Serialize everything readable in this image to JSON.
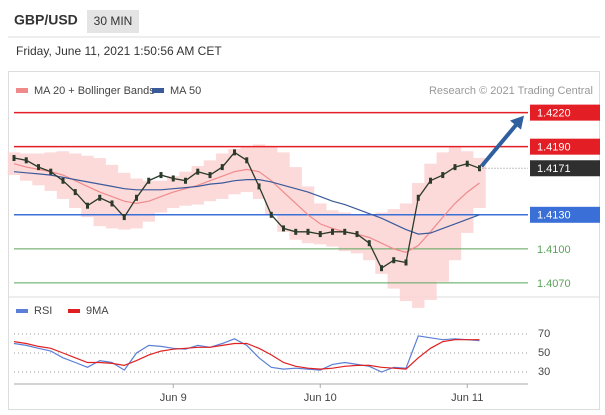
{
  "header": {
    "symbol": "GBP/USD",
    "interval": "30 MIN",
    "timestamp": "Friday, June 11, 2021 1:50:56 AM CET"
  },
  "chart_data": {
    "type": "line",
    "source": "Research © 2021 Trading Central",
    "categories": [
      null,
      null,
      null,
      null,
      null,
      null,
      null,
      null,
      null,
      null,
      null,
      null,
      null,
      "Jun 9",
      null,
      null,
      null,
      null,
      null,
      null,
      null,
      null,
      null,
      null,
      null,
      "Jun 10",
      null,
      null,
      null,
      null,
      null,
      null,
      null,
      null,
      null,
      null,
      null,
      "Jun 11",
      null
    ],
    "close_color": "#2b3a2b",
    "close": [
      1.418,
      1.4178,
      1.4172,
      1.4168,
      1.416,
      1.415,
      1.4138,
      1.4145,
      1.414,
      1.4128,
      1.4145,
      1.416,
      1.4165,
      1.4162,
      1.416,
      1.4168,
      1.4165,
      1.4172,
      1.4185,
      1.4178,
      1.4155,
      1.413,
      1.4118,
      1.4115,
      1.4115,
      1.4113,
      1.4115,
      1.4115,
      1.4113,
      1.4105,
      1.4083,
      1.409,
      1.4088,
      1.4145,
      1.416,
      1.4165,
      1.4172,
      1.4175,
      1.4171
    ],
    "series": [
      {
        "name": "MA 20 + Bollinger Bands",
        "color": "#f08a8a",
        "band_color": "#fbd3d3",
        "values": [
          1.4175,
          1.4172,
          1.417,
          1.4168,
          1.4165,
          1.416,
          1.4155,
          1.415,
          1.4146,
          1.4142,
          1.414,
          1.4142,
          1.4146,
          1.415,
          1.4153,
          1.4156,
          1.416,
          1.4164,
          1.4168,
          1.417,
          1.4168,
          1.416,
          1.415,
          1.414,
          1.413,
          1.4122,
          1.4118,
          1.4115,
          1.4113,
          1.411,
          1.4105,
          1.41,
          1.4097,
          1.4103,
          1.4115,
          1.4128,
          1.414,
          1.415,
          1.4158
        ],
        "upper": [
          1.4185,
          1.4184,
          1.4184,
          1.4185,
          1.4186,
          1.4184,
          1.4182,
          1.418,
          1.4174,
          1.4167,
          1.4162,
          1.416,
          1.416,
          1.4164,
          1.4168,
          1.4173,
          1.4178,
          1.4184,
          1.4188,
          1.419,
          1.4192,
          1.419,
          1.4185,
          1.4172,
          1.4155,
          1.414,
          1.4134,
          1.4132,
          1.413,
          1.413,
          1.4132,
          1.4135,
          1.414,
          1.4158,
          1.4175,
          1.4185,
          1.419,
          1.4186,
          1.418
        ],
        "lower": [
          1.4165,
          1.416,
          1.4156,
          1.4151,
          1.4144,
          1.4136,
          1.4128,
          1.412,
          1.4118,
          1.4117,
          1.4118,
          1.4124,
          1.4132,
          1.4136,
          1.4138,
          1.4139,
          1.4142,
          1.4144,
          1.4148,
          1.415,
          1.4144,
          1.413,
          1.4115,
          1.4108,
          1.4105,
          1.4104,
          1.4102,
          1.4098,
          1.4096,
          1.409,
          1.4078,
          1.4065,
          1.4054,
          1.4048,
          1.4055,
          1.4071,
          1.409,
          1.4114,
          1.4136
        ]
      },
      {
        "name": "MA 50",
        "color": "#3b5a9a",
        "values": [
          1.4168,
          1.4167,
          1.4166,
          1.4165,
          1.4163,
          1.4161,
          1.4159,
          1.4157,
          1.4155,
          1.4153,
          1.4152,
          1.4152,
          1.4152,
          1.4153,
          1.4154,
          1.4155,
          1.4157,
          1.4158,
          1.416,
          1.4161,
          1.4161,
          1.4159,
          1.4156,
          1.4153,
          1.415,
          1.4146,
          1.4142,
          1.4139,
          1.4135,
          1.4131,
          1.4127,
          1.4122,
          1.4117,
          1.4113,
          1.4114,
          1.4118,
          1.4122,
          1.4126,
          1.413
        ]
      }
    ],
    "ylim": [
      1.4062,
      1.4232
    ],
    "levels": [
      {
        "value": 1.422,
        "label": "1.4220",
        "color": "#e31e24",
        "style": "box"
      },
      {
        "value": 1.419,
        "label": "1.4190",
        "color": "#e31e24",
        "style": "box"
      },
      {
        "value": 1.413,
        "label": "1.4130",
        "color": "#3a6fd8",
        "style": "box"
      },
      {
        "value": 1.41,
        "label": "1.4100",
        "color": "#5aa35a",
        "style": "text"
      },
      {
        "value": 1.407,
        "label": "1.4070",
        "color": "#5aa35a",
        "style": "text"
      }
    ],
    "last": {
      "value": 1.4171,
      "label": "1.4171",
      "color": "#2f2f2f"
    },
    "arrow_color": "#2f5f9f",
    "rsi": {
      "ylim": [
        20,
        80
      ],
      "yticks": [
        70,
        50,
        30
      ],
      "series": [
        {
          "name": "RSI",
          "color": "#5b7fd6",
          "values": [
            60,
            58,
            55,
            52,
            45,
            40,
            35,
            42,
            40,
            32,
            50,
            58,
            57,
            55,
            54,
            58,
            56,
            60,
            65,
            58,
            45,
            35,
            33,
            34,
            33,
            32,
            38,
            40,
            38,
            36,
            30,
            35,
            34,
            68,
            66,
            64,
            65,
            64,
            63
          ]
        },
        {
          "name": "9MA",
          "color": "#e02020",
          "values": [
            62,
            60,
            57,
            55,
            50,
            45,
            40,
            40,
            39,
            37,
            42,
            48,
            52,
            54,
            55,
            56,
            56,
            58,
            60,
            60,
            55,
            48,
            40,
            36,
            34,
            33,
            34,
            36,
            37,
            37,
            35,
            34,
            33,
            45,
            55,
            62,
            64,
            64,
            64
          ]
        }
      ]
    }
  }
}
